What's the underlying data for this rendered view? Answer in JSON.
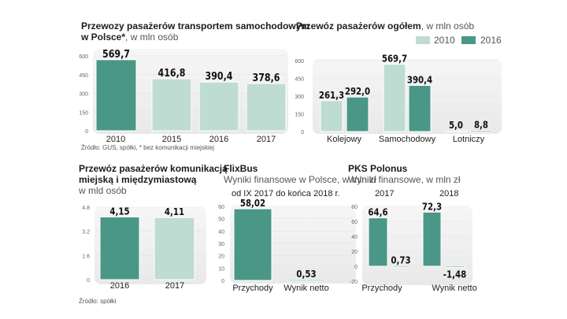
{
  "colors": {
    "dark": "#4b9787",
    "light": "#bfdcd3",
    "panel": "#efefef"
  },
  "chart_data": [
    {
      "type": "bar",
      "title": "Przewozy pasażerów transportem samochodowym w Polsce*",
      "title_line1": "Przewozy pasażerów transportem samochodowym",
      "title_line2": "w Polsce*",
      "unit": ", w mln osób",
      "categories": [
        "2010",
        "2015",
        "2016",
        "2017"
      ],
      "values": [
        569.7,
        416.8,
        390.4,
        378.6
      ],
      "labels": [
        "569,7",
        "416,8",
        "390,4",
        "378,6"
      ],
      "bar_colors": [
        "dark",
        "light",
        "light",
        "light"
      ],
      "yticks": [
        "0",
        "150",
        "300",
        "450",
        "600"
      ],
      "ylim": [
        0,
        600
      ],
      "source": "Źródło: GUS, spółki, * bez komunikacji miejskiej"
    },
    {
      "type": "bar",
      "title": "Przewóz pasażerów ogółem",
      "unit": ", w mln osób",
      "categories": [
        "Kolejowy",
        "Samochodowy",
        "Lotniczy"
      ],
      "series": [
        {
          "name": "2010",
          "color": "light",
          "values": [
            261.3,
            569.7,
            5.0
          ],
          "labels": [
            "261,3",
            "569,7",
            "5,0"
          ]
        },
        {
          "name": "2016",
          "color": "dark",
          "values": [
            292.0,
            390.4,
            8.8
          ],
          "labels": [
            "292,0",
            "390,4",
            "8,8"
          ]
        }
      ],
      "yticks": [
        "0",
        "150",
        "300",
        "450",
        "600"
      ],
      "ylim": [
        0,
        600
      ],
      "legend": "top-right"
    },
    {
      "type": "bar",
      "title_line1": "Przewóz pasażerów komunikacją",
      "title_line2": "miejską i międzymiastową",
      "unit": "w mld osób",
      "categories": [
        "2016",
        "2017"
      ],
      "values": [
        4.15,
        4.11
      ],
      "labels": [
        "4,15",
        "4,11"
      ],
      "bar_colors": [
        "dark",
        "light"
      ],
      "yticks": [
        "0",
        "1.6",
        "3.2",
        "4.8"
      ],
      "ylim": [
        0,
        4.8
      ],
      "source": "Źródło: spółki"
    },
    {
      "type": "bar",
      "title": "FlixBus",
      "unit": "Wyniki finansowe w Polsce, w mln zł",
      "period": "od IX 2017 do końca 2018 r.",
      "categories": [
        "Przychody",
        "Wynik netto"
      ],
      "values": [
        58.02,
        0.53
      ],
      "labels": [
        "58,02",
        "0,53"
      ],
      "bar_colors": [
        "dark",
        "dark"
      ],
      "yticks": [
        "0",
        "10",
        "20",
        "30",
        "40",
        "50",
        "60"
      ],
      "ylim": [
        0,
        60
      ]
    },
    {
      "type": "bar",
      "title": "PKS Polonus",
      "unit": "Wyniki finansowe, w mln zł",
      "categories": [
        "Przychody",
        "Wynik netto"
      ],
      "series": [
        {
          "name": "2017",
          "color": "dark",
          "values": [
            64.6,
            0.73
          ],
          "labels": [
            "64,6",
            "0,73"
          ]
        },
        {
          "name": "2018",
          "color": "dark",
          "values": [
            72.3,
            -1.48
          ],
          "labels": [
            "72,3",
            "-1,48"
          ]
        }
      ],
      "yticks": [
        "-20",
        "0",
        "20",
        "40",
        "60",
        "80"
      ],
      "ylim": [
        -20,
        80
      ]
    }
  ]
}
